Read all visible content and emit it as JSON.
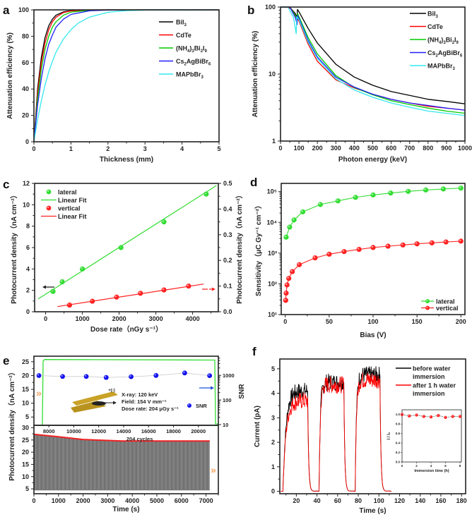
{
  "chart_data": [
    {
      "panel": "a",
      "type": "line",
      "title": "",
      "xlabel": "Thickness (mm)",
      "ylabel": "Attenuation efficiency (%)",
      "xlim": [
        0,
        5
      ],
      "ylim": [
        0,
        100
      ],
      "xticks": [
        "0",
        "1",
        "2",
        "3",
        "4",
        "5"
      ],
      "yticks": [
        "0",
        "20",
        "40",
        "60",
        "80",
        "100"
      ],
      "legend_position": "top-right",
      "series": [
        {
          "name": "BiI3",
          "label_main": "BiI",
          "label_sub": "3",
          "color": "#000000",
          "x": [
            0,
            0.1,
            0.2,
            0.3,
            0.4,
            0.5,
            0.6,
            0.8,
            1.0,
            1.5,
            2,
            3,
            5
          ],
          "y": [
            0,
            40,
            64,
            79,
            88,
            93,
            96,
            98.5,
            99.4,
            99.9,
            100,
            100,
            100
          ]
        },
        {
          "name": "CdTe",
          "label_main": "CdTe",
          "label_sub": "",
          "color": "#ff0000",
          "x": [
            0,
            0.1,
            0.2,
            0.3,
            0.4,
            0.5,
            0.6,
            0.8,
            1.0,
            1.5,
            2,
            3,
            5
          ],
          "y": [
            0,
            37,
            60,
            75,
            85,
            91,
            94.5,
            98,
            99.2,
            99.9,
            100,
            100,
            100
          ]
        },
        {
          "name": "(NH4)3Bi2I9",
          "label_main": "(NH4)3Bi2I9",
          "label_sub": "",
          "color": "#00cc00",
          "x": [
            0,
            0.1,
            0.2,
            0.3,
            0.4,
            0.5,
            0.6,
            0.8,
            1.0,
            1.5,
            2,
            3,
            5
          ],
          "y": [
            0,
            33,
            55,
            70,
            80,
            87,
            91,
            96,
            98.3,
            99.7,
            100,
            100,
            100
          ]
        },
        {
          "name": "Cs2AgBiBr6",
          "label_main": "Cs2AgBiBr6",
          "label_sub": "",
          "color": "#2020ff",
          "x": [
            0,
            0.1,
            0.2,
            0.3,
            0.4,
            0.5,
            0.6,
            0.8,
            1.0,
            1.5,
            2,
            3,
            5
          ],
          "y": [
            0,
            28,
            48,
            63,
            74,
            81,
            87,
            93,
            96.5,
            99.3,
            99.8,
            100,
            100
          ]
        },
        {
          "name": "MAPbBr3",
          "label_main": "MAPbBr",
          "label_sub": "3",
          "color": "#33e8f0",
          "x": [
            0,
            0.1,
            0.2,
            0.3,
            0.4,
            0.5,
            0.6,
            0.8,
            1.0,
            1.2,
            1.5,
            2,
            2.5,
            3,
            5
          ],
          "y": [
            0,
            17,
            31,
            43,
            53,
            61,
            68,
            78,
            85,
            90,
            94.5,
            98.2,
            99.4,
            99.8,
            100
          ]
        }
      ]
    },
    {
      "panel": "b",
      "type": "line",
      "title": "",
      "xlabel": "Photon energy (keV)",
      "ylabel": "Attenuation efficiency (%)",
      "xlim": [
        0,
        1000
      ],
      "ylim": [
        1,
        100
      ],
      "yscale": "log",
      "xticks": [
        "0",
        "100",
        "200",
        "300",
        "400",
        "500",
        "600",
        "700",
        "800",
        "900",
        "1000"
      ],
      "yticks": [
        "1",
        "10",
        "100"
      ],
      "legend_position": "top-right",
      "series": [
        {
          "name": "BiI3",
          "color": "#000000",
          "x": [
            0,
            50,
            80,
            90,
            92,
            100,
            150,
            200,
            300,
            400,
            500,
            600,
            700,
            800,
            900,
            1000
          ],
          "y": [
            100,
            100,
            80,
            70,
            92,
            85,
            48,
            29,
            14,
            9,
            6.8,
            5.5,
            4.8,
            4.2,
            3.9,
            3.6
          ]
        },
        {
          "name": "CdTe",
          "color": "#ff0000",
          "x": [
            0,
            40,
            60,
            80,
            100,
            150,
            200,
            300,
            400,
            500,
            600,
            700,
            800,
            900,
            1000
          ],
          "y": [
            100,
            100,
            92,
            75,
            62,
            28,
            15.5,
            8.2,
            6.2,
            5,
            4.2,
            3.7,
            3.3,
            3.1,
            2.9
          ]
        },
        {
          "name": "(NH4)3Bi2I9",
          "color": "#00cc00",
          "x": [
            0,
            50,
            80,
            90,
            92,
            100,
            150,
            200,
            300,
            400,
            500,
            600,
            700,
            800,
            900,
            1000
          ],
          "y": [
            100,
            100,
            75,
            65,
            80,
            72,
            35,
            20,
            9.5,
            6.3,
            4.9,
            4,
            3.5,
            3.1,
            2.8,
            2.6
          ]
        },
        {
          "name": "Cs2AgBiBr6",
          "color": "#2020ff",
          "x": [
            0,
            50,
            80,
            90,
            92,
            100,
            150,
            200,
            300,
            400,
            500,
            600,
            700,
            800,
            900,
            1000
          ],
          "y": [
            100,
            100,
            70,
            55,
            75,
            68,
            32,
            18,
            9,
            6.4,
            5,
            4.2,
            3.7,
            3.4,
            3.1,
            2.9
          ]
        },
        {
          "name": "MAPbBr3",
          "color": "#33e8f0",
          "x": [
            0,
            40,
            70,
            85,
            88,
            100,
            150,
            200,
            300,
            400,
            500,
            600,
            700,
            800,
            900,
            1000
          ],
          "y": [
            100,
            100,
            70,
            40,
            72,
            65,
            30,
            17,
            8.5,
            5.8,
            4.5,
            3.7,
            3.2,
            2.8,
            2.6,
            2.4
          ]
        }
      ]
    },
    {
      "panel": "c",
      "type": "scatter",
      "title": "",
      "xlabel": "Dose rate（nGy s⁻¹）",
      "ylabel": "Photocurrent density（nA cm⁻²）",
      "ylabel_right": "Photocurrent density（nA cm⁻²）",
      "xlim": [
        -300,
        4700
      ],
      "ylim": [
        0,
        12
      ],
      "ylim_right": [
        0,
        0.5
      ],
      "xticks": [
        "0",
        "1000",
        "2000",
        "3000",
        "4000"
      ],
      "yticks": [
        "0",
        "2",
        "4",
        "6",
        "8",
        "10",
        "12"
      ],
      "yticks_right": [
        "0.0",
        "0.1",
        "0.2",
        "0.3",
        "0.4",
        "0.5"
      ],
      "legend_position": "top-left",
      "series": [
        {
          "name": "lateral",
          "axis": "left",
          "color": "#33dd33",
          "x": [
            200,
            450,
            1000,
            2050,
            3220,
            4370
          ],
          "y": [
            1.9,
            2.8,
            4.0,
            6.0,
            8.4,
            11.0
          ]
        },
        {
          "name": "Linear Fit",
          "axis": "left",
          "color": "#33dd33",
          "fit": true,
          "x": [
            -200,
            4650
          ],
          "y": [
            1.2,
            11.8
          ]
        },
        {
          "name": "vertical",
          "axis": "right",
          "color": "#ff2222",
          "x": [
            650,
            1270,
            1930,
            2580,
            3220,
            3890
          ],
          "y": [
            0.026,
            0.041,
            0.057,
            0.072,
            0.085,
            0.1
          ]
        },
        {
          "name": "Linear Fit",
          "axis": "right",
          "color": "#ff2222",
          "fit": true,
          "x": [
            320,
            4300
          ],
          "y": [
            0.02,
            0.108
          ]
        }
      ]
    },
    {
      "panel": "d",
      "type": "line",
      "title": "",
      "xlabel": "Bias (V)",
      "ylabel": "Sensitivity（μC Gy⁻¹ cm⁻²）",
      "xlim": [
        -3,
        203
      ],
      "ylim": [
        10,
        150000
      ],
      "yscale": "log",
      "xticks": [
        "0",
        "50",
        "100",
        "150",
        "200"
      ],
      "yticks": [
        "10¹",
        "10²",
        "10³",
        "10⁴",
        "10⁵"
      ],
      "legend_position": "bottom-right",
      "series": [
        {
          "name": "lateral",
          "color": "#33dd33",
          "x": [
            1,
            5,
            10,
            20,
            40,
            60,
            80,
            100,
            120,
            140,
            160,
            180,
            200
          ],
          "y": [
            3300,
            7000,
            12000,
            22000,
            38000,
            50000,
            65000,
            78000,
            90000,
            102000,
            113000,
            122000,
            130000
          ]
        },
        {
          "name": "vertical",
          "color": "#ff2222",
          "x": [
            0.5,
            1,
            2,
            4,
            8,
            16,
            34,
            50,
            67,
            84,
            100,
            117,
            134,
            150,
            167,
            183,
            200
          ],
          "y": [
            29,
            50,
            92,
            150,
            250,
            420,
            700,
            920,
            1120,
            1320,
            1520,
            1680,
            1840,
            2000,
            2150,
            2300,
            2450
          ]
        }
      ]
    },
    {
      "panel": "e",
      "type": "line",
      "title": "",
      "xlabel": "Time (s)",
      "ylabel": "Photocurrent density（nA cm⁻²）",
      "upper": {
        "xlim": [
          6800,
          21600
        ],
        "ylim": [
          2,
          27
        ],
        "xticks": [
          "8000",
          "10000",
          "12000",
          "14000",
          "16000",
          "18000",
          "20000"
        ],
        "yticks": [
          "5",
          "10",
          "15",
          "20",
          "25"
        ],
        "ylabel_right": "SNR",
        "yticks_right": [
          "10",
          "100",
          "1000"
        ],
        "snr_series": {
          "name": "SNR",
          "color": "#1010ee",
          "x": [
            7200,
            9100,
            11000,
            12600,
            14600,
            16600,
            18900,
            20900
          ],
          "y": [
            980,
            900,
            900,
            820,
            880,
            990,
            1250,
            970
          ]
        },
        "green_trace": {
          "color": "#33dd33",
          "level": 25.8
        },
        "annotation": [
          "X-ray: 120 keV",
          "Field: 154 V mm⁻¹",
          "Dose rate: 204 μGy s⁻¹"
        ],
        "device_label": "+(-)"
      },
      "lower": {
        "xlim": [
          0,
          7500
        ],
        "ylim": [
          3,
          31
        ],
        "xticks": [
          "0",
          "1000",
          "2000",
          "3000",
          "4000",
          "5000",
          "6000",
          "7000"
        ],
        "yticks": [
          "5",
          "10",
          "15",
          "20",
          "25",
          "30"
        ],
        "cycles_label": "204 cycles",
        "envelope": {
          "color": "#ee2222",
          "x": [
            0,
            1000,
            2000,
            3600,
            7150
          ],
          "y": [
            27.3,
            26.3,
            25.2,
            24.6,
            24.6
          ]
        },
        "baseline": 4.5
      }
    },
    {
      "panel": "f",
      "type": "line",
      "title": "",
      "xlabel": "Time (s)",
      "ylabel": "Current (pA)",
      "xlim": [
        4,
        184
      ],
      "ylim": [
        -0.1,
        5.4
      ],
      "xticks": [
        "20",
        "40",
        "60",
        "80",
        "100",
        "120",
        "140",
        "160",
        "180"
      ],
      "yticks": [
        "0",
        "1",
        "2",
        "3",
        "4",
        "5"
      ],
      "legend_position": "top-right",
      "series": [
        {
          "name": "before water immersion",
          "color": "#000000",
          "on_periods": [
            [
              7,
              31
            ],
            [
              42,
              66
            ],
            [
              77,
              101
            ]
          ],
          "on_levels": [
            4.1,
            4.45,
            4.75
          ]
        },
        {
          "name": "after 1 h water immersion",
          "color": "#ff0000",
          "on_periods": [
            [
              7,
              31
            ],
            [
              42,
              66
            ],
            [
              77,
              101
            ]
          ],
          "on_levels": [
            3.7,
            4.35,
            4.55
          ]
        }
      ],
      "inset": {
        "xlabel": "Immersion time (h)",
        "ylabel": "I / I₀",
        "xlim": [
          0,
          8.2
        ],
        "ylim": [
          0,
          1.1
        ],
        "xticks": [
          "0",
          "2",
          "4",
          "6",
          "8"
        ],
        "yticks": [
          "0.0",
          "0.2",
          "0.4",
          "0.6",
          "0.8",
          "1.0"
        ],
        "series": {
          "color": "#ff2222",
          "x": [
            0,
            1,
            2,
            3,
            4,
            5,
            6,
            7,
            8
          ],
          "y": [
            1.0,
            0.97,
            0.99,
            0.96,
            0.95,
            0.98,
            0.94,
            0.96,
            0.96
          ]
        }
      }
    }
  ],
  "panels": {
    "a": {
      "letter": "a"
    },
    "b": {
      "letter": "b"
    },
    "c": {
      "letter": "c"
    },
    "d": {
      "letter": "d"
    },
    "e": {
      "letter": "e"
    },
    "f": {
      "letter": "f"
    }
  }
}
